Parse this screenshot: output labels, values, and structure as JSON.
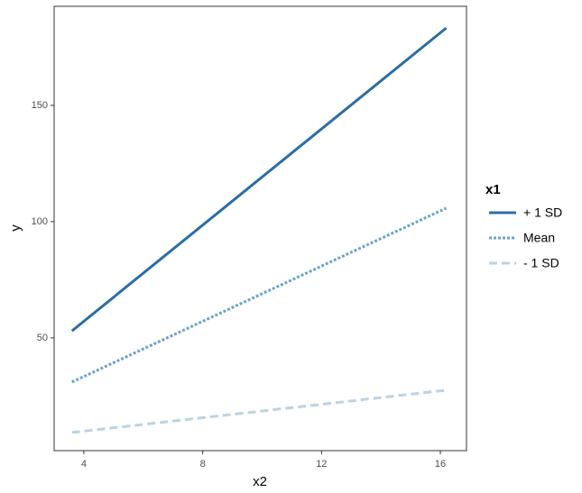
{
  "chart_data": {
    "type": "line",
    "x_label": "x2",
    "y_label": "y",
    "x": [
      3.6,
      16.2
    ],
    "series": [
      {
        "name": "+ 1 SD",
        "color": "#2a6da6",
        "dash": "solid",
        "values": [
          53,
          183.3
        ]
      },
      {
        "name": "Mean",
        "color": "#6ba4c6",
        "dash": "dotted",
        "values": [
          31,
          105.8
        ]
      },
      {
        "name": "- 1 SD",
        "color": "#bad3e4",
        "dash": "dashed",
        "values": [
          9.3,
          27.5
        ]
      }
    ],
    "legend_title": "x1",
    "legend": "right",
    "xlim": [
      3.0,
      16.88
    ],
    "xticks": [
      4,
      8,
      12,
      16
    ],
    "ylim": [
      1.5,
      192.6
    ],
    "yticks": [
      50,
      100,
      150
    ],
    "grid": false
  }
}
